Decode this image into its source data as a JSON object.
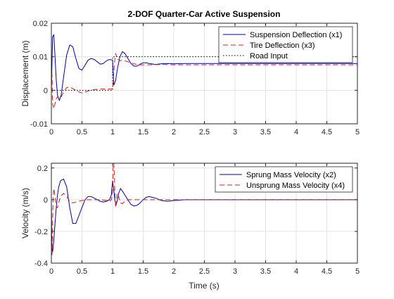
{
  "figure": {
    "title": "2-DOF Quarter-Car Active Suspension",
    "xlabel": "Time (s)"
  },
  "colors": {
    "blue": "#0000a8",
    "red": "#d42020",
    "black": "#000000",
    "grid": "#e3e3e3",
    "axis": "#262626"
  },
  "chart_data": [
    {
      "type": "line",
      "title": "2-DOF Quarter-Car Active Suspension",
      "xlabel": "",
      "ylabel": "Displacement (m)",
      "xlim": [
        0,
        5
      ],
      "ylim": [
        -0.01,
        0.02
      ],
      "xticks": [
        0,
        0.5,
        1,
        1.5,
        2,
        2.5,
        3,
        3.5,
        4,
        4.5,
        5
      ],
      "xtick_labels": [
        "0",
        "0.5",
        "1",
        "1.5",
        "2",
        "2.5",
        "3",
        "3.5",
        "4",
        "4.5",
        "5"
      ],
      "yticks": [
        -0.01,
        0,
        0.01,
        0.02
      ],
      "ytick_labels": [
        "-0.01",
        "0",
        "0.01",
        "0.02"
      ],
      "grid": true,
      "legend_position": "top-right",
      "series": [
        {
          "name": "Suspension Deflection (x1)",
          "color": "blue",
          "style": "solid",
          "x": [
            0,
            0.02,
            0.04,
            0.06,
            0.08,
            0.1,
            0.13,
            0.16,
            0.2,
            0.25,
            0.3,
            0.35,
            0.4,
            0.45,
            0.5,
            0.55,
            0.6,
            0.65,
            0.7,
            0.75,
            0.8,
            0.85,
            0.9,
            0.95,
            1.0,
            1.02,
            1.05,
            1.08,
            1.12,
            1.16,
            1.2,
            1.25,
            1.3,
            1.35,
            1.4,
            1.45,
            1.5,
            1.55,
            1.6,
            1.7,
            1.8,
            1.9,
            2.0,
            2.2,
            2.5,
            3.0,
            4.0,
            5.0
          ],
          "y": [
            0.0,
            0.016,
            0.0165,
            0.01,
            0.003,
            -0.0015,
            -0.003,
            -0.0015,
            0.004,
            0.0105,
            0.0135,
            0.013,
            0.0095,
            0.0065,
            0.006,
            0.0075,
            0.009,
            0.0095,
            0.0092,
            0.0085,
            0.0078,
            0.008,
            0.0088,
            0.0092,
            0.009,
            0.0015,
            0.003,
            0.0065,
            0.01,
            0.0115,
            0.011,
            0.0095,
            0.008,
            0.0072,
            0.0072,
            0.0078,
            0.0082,
            0.0082,
            0.008,
            0.0077,
            0.0079,
            0.008,
            0.0079,
            0.008,
            0.008,
            0.008,
            0.008,
            0.008
          ]
        },
        {
          "name": "Tire Deflection (x3)",
          "color": "red",
          "style": "dashed",
          "x": [
            0,
            0.01,
            0.02,
            0.04,
            0.06,
            0.08,
            0.1,
            0.13,
            0.16,
            0.2,
            0.25,
            0.3,
            0.35,
            0.4,
            0.45,
            0.5,
            0.55,
            0.6,
            0.65,
            0.7,
            0.75,
            0.8,
            0.85,
            0.9,
            0.95,
            1.0,
            1.01,
            1.03,
            1.05,
            1.08,
            1.12,
            1.16,
            1.2,
            1.25,
            1.3,
            1.35,
            1.4,
            1.45,
            1.5,
            1.6,
            1.8,
            2.0,
            2.5,
            3.0,
            4.0,
            5.0
          ],
          "y": [
            0.0,
            0.005,
            -0.004,
            -0.0055,
            -0.004,
            -0.0025,
            -0.002,
            -0.0025,
            -0.002,
            -0.0005,
            0.0008,
            0.001,
            0.0005,
            0.0,
            -0.0005,
            -0.0008,
            -0.0005,
            -0.0002,
            0.0,
            0.0002,
            0.0003,
            0.0004,
            0.0004,
            0.0003,
            0.0004,
            0.0004,
            0.002,
            0.008,
            0.011,
            0.0093,
            0.0088,
            0.009,
            0.0088,
            0.0085,
            0.0082,
            0.0079,
            0.0077,
            0.0076,
            0.0076,
            0.0076,
            0.0077,
            0.0076,
            0.0076,
            0.0076,
            0.0076,
            0.0076
          ]
        },
        {
          "name": "Road Input",
          "color": "black",
          "style": "dotted",
          "x": [
            0,
            1.0,
            1.0,
            5.0
          ],
          "y": [
            0.0,
            0.0,
            0.01,
            0.01
          ]
        }
      ]
    },
    {
      "type": "line",
      "title": "",
      "xlabel": "Time (s)",
      "ylabel": "Velocity (m/s)",
      "xlim": [
        0,
        5
      ],
      "ylim": [
        -0.4,
        0.23
      ],
      "xticks": [
        0,
        0.5,
        1,
        1.5,
        2,
        2.5,
        3,
        3.5,
        4,
        4.5,
        5
      ],
      "xtick_labels": [
        "0",
        "0.5",
        "1",
        "1.5",
        "2",
        "2.5",
        "3",
        "3.5",
        "4",
        "4.5",
        "5"
      ],
      "yticks": [
        -0.4,
        -0.2,
        0,
        0.2
      ],
      "ytick_labels": [
        "-0.4",
        "-0.2",
        "0",
        "0.2"
      ],
      "grid": true,
      "legend_position": "top-right",
      "series": [
        {
          "name": "Sprung Mass Velocity (x2)",
          "color": "blue",
          "style": "solid",
          "x": [
            0,
            0.005,
            0.01,
            0.02,
            0.03,
            0.05,
            0.08,
            0.1,
            0.12,
            0.15,
            0.2,
            0.25,
            0.3,
            0.35,
            0.4,
            0.45,
            0.5,
            0.55,
            0.6,
            0.65,
            0.7,
            0.75,
            0.8,
            0.85,
            0.9,
            0.95,
            0.98,
            1.0,
            1.02,
            1.04,
            1.06,
            1.08,
            1.1,
            1.13,
            1.16,
            1.2,
            1.25,
            1.3,
            1.35,
            1.4,
            1.45,
            1.5,
            1.55,
            1.6,
            1.7,
            1.8,
            1.9,
            2.0,
            2.2,
            2.5,
            3.0,
            5.0
          ],
          "y": [
            0.0,
            -0.2,
            -0.3,
            -0.33,
            -0.3,
            -0.2,
            -0.05,
            0.03,
            0.08,
            0.12,
            0.13,
            0.08,
            -0.05,
            -0.15,
            -0.15,
            -0.1,
            -0.05,
            0.0,
            0.02,
            0.02,
            0.01,
            0.0,
            -0.01,
            -0.015,
            -0.01,
            0.0,
            0.03,
            0.12,
            0.06,
            -0.01,
            -0.03,
            0.0,
            0.04,
            0.07,
            0.055,
            0.03,
            0.0,
            -0.03,
            -0.04,
            -0.035,
            -0.02,
            0.0,
            0.015,
            0.02,
            0.01,
            -0.005,
            -0.01,
            -0.005,
            0.0,
            0.0,
            0.0,
            0.0
          ]
        },
        {
          "name": "Unsprung Mass Velocity (x4)",
          "color": "red",
          "style": "dashed",
          "x": [
            0,
            0.005,
            0.01,
            0.015,
            0.02,
            0.03,
            0.04,
            0.05,
            0.07,
            0.09,
            0.1,
            0.12,
            0.15,
            0.2,
            0.25,
            0.3,
            0.35,
            0.4,
            0.45,
            0.5,
            0.6,
            0.7,
            0.8,
            0.9,
            0.95,
            0.98,
            1.0,
            1.005,
            1.01,
            1.02,
            1.03,
            1.04,
            1.05,
            1.06,
            1.07,
            1.08,
            1.1,
            1.13,
            1.16,
            1.2,
            1.25,
            1.3,
            1.4,
            1.5,
            1.6,
            1.8,
            2.0,
            2.5,
            3.0,
            5.0
          ],
          "y": [
            0.0,
            -0.25,
            -0.35,
            -0.3,
            -0.15,
            0.02,
            0.07,
            0.05,
            -0.02,
            -0.05,
            -0.05,
            -0.02,
            0.02,
            0.04,
            0.02,
            -0.01,
            -0.02,
            -0.015,
            -0.01,
            -0.005,
            0.0,
            0.0,
            0.0,
            -0.005,
            -0.01,
            0.0,
            0.05,
            0.12,
            0.23,
            0.23,
            0.15,
            0.02,
            -0.05,
            -0.02,
            0.03,
            0.04,
            0.02,
            -0.02,
            -0.025,
            -0.01,
            0.0,
            0.0,
            0.0,
            0.0,
            0.0,
            0.0,
            0.0,
            0.0,
            0.0,
            0.0
          ]
        }
      ]
    }
  ]
}
